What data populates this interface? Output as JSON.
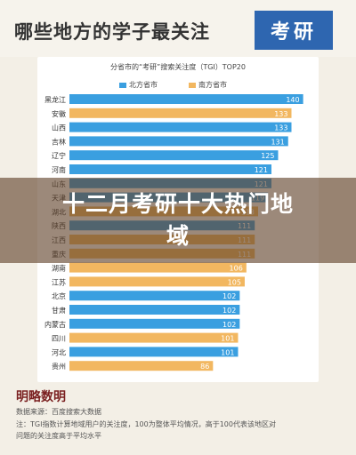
{
  "header": {
    "title": "哪些地方的学子最关注",
    "badge": "考研"
  },
  "chart_data": {
    "type": "bar",
    "orientation": "horizontal",
    "title": "分省市的“考研”搜索关注度（TGI）TOP20",
    "categories": [
      "黑龙江",
      "安徽",
      "山西",
      "吉林",
      "辽宁",
      "河南",
      "山东",
      "天津",
      "湖北",
      "陕西",
      "江西",
      "重庆",
      "湖南",
      "江苏",
      "北京",
      "甘肃",
      "内蒙古",
      "四川",
      "河北",
      "贵州"
    ],
    "values": [
      140,
      133,
      133,
      131,
      125,
      121,
      121,
      119,
      113,
      111,
      111,
      111,
      106,
      105,
      102,
      102,
      102,
      101,
      101,
      86
    ],
    "region": [
      "north",
      "south",
      "north",
      "north",
      "north",
      "north",
      "north",
      "north",
      "south",
      "north",
      "south",
      "south",
      "south",
      "south",
      "north",
      "north",
      "north",
      "south",
      "north",
      "south"
    ],
    "legend": [
      {
        "key": "north",
        "label": "北方省市",
        "color": "#3a9fe0"
      },
      {
        "key": "south",
        "label": "南方省市",
        "color": "#f2b760"
      }
    ],
    "xlim": [
      0,
      145
    ],
    "grid": false
  },
  "footer": {
    "logo": "明略数明",
    "source": "数据来源：百度搜索大数据",
    "note1": "注：TGI指数计算地域用户的关注度，100为整体平均情况，高于100代表该地区对",
    "note2": "问题的关注度高于平均水平"
  },
  "overlay": {
    "line1": "十二月考研十大热门地",
    "line2": "域"
  }
}
